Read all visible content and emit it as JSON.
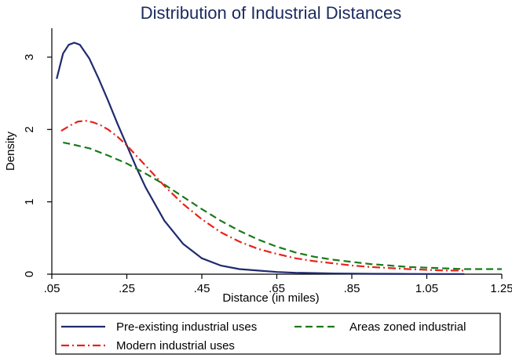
{
  "chart_data": {
    "type": "line",
    "title": "Distribution of Industrial Distances",
    "xlabel": "Distance (in miles)",
    "ylabel": "Density",
    "xlim": [
      0.05,
      1.25
    ],
    "ylim": [
      0,
      3.4
    ],
    "x_ticks": [
      ".05",
      ".25",
      ".45",
      ".65",
      ".85",
      "1.05",
      "1.25"
    ],
    "x_tick_values": [
      0.05,
      0.25,
      0.45,
      0.65,
      0.85,
      1.05,
      1.25
    ],
    "y_ticks": [
      "0",
      "1",
      "2",
      "3"
    ],
    "y_tick_values": [
      0,
      1,
      2,
      3
    ],
    "grid": false,
    "legend_position": "bottom",
    "series": [
      {
        "name": "Pre-existing industrial uses",
        "color": "#1f2a6e",
        "dash": "solid",
        "x": [
          0.063,
          0.08,
          0.095,
          0.11,
          0.125,
          0.15,
          0.175,
          0.2,
          0.225,
          0.25,
          0.275,
          0.3,
          0.35,
          0.4,
          0.45,
          0.5,
          0.55,
          0.6,
          0.65,
          0.7,
          0.75,
          0.8,
          0.9,
          1.0,
          1.1,
          1.15
        ],
        "y": [
          2.7,
          3.05,
          3.17,
          3.2,
          3.17,
          2.98,
          2.7,
          2.4,
          2.08,
          1.78,
          1.48,
          1.2,
          0.74,
          0.42,
          0.22,
          0.12,
          0.07,
          0.05,
          0.03,
          0.02,
          0.015,
          0.01,
          0.005,
          0.003,
          0.002,
          0.002
        ]
      },
      {
        "name": "Areas zoned industrial",
        "color": "#1a7a1a",
        "dash": "dashed",
        "x": [
          0.08,
          0.1,
          0.15,
          0.2,
          0.25,
          0.3,
          0.35,
          0.4,
          0.45,
          0.5,
          0.55,
          0.6,
          0.65,
          0.7,
          0.75,
          0.8,
          0.85,
          0.9,
          0.95,
          1.0,
          1.05,
          1.1,
          1.15,
          1.2,
          1.25
        ],
        "y": [
          1.82,
          1.8,
          1.74,
          1.64,
          1.53,
          1.39,
          1.24,
          1.07,
          0.9,
          0.74,
          0.6,
          0.48,
          0.38,
          0.3,
          0.24,
          0.2,
          0.17,
          0.14,
          0.12,
          0.1,
          0.09,
          0.08,
          0.07,
          0.07,
          0.07
        ]
      },
      {
        "name": "Modern industrial uses",
        "color": "#e8231a",
        "dash": "dashdot",
        "x": [
          0.075,
          0.1,
          0.12,
          0.14,
          0.16,
          0.18,
          0.2,
          0.225,
          0.25,
          0.275,
          0.3,
          0.35,
          0.4,
          0.45,
          0.5,
          0.55,
          0.6,
          0.65,
          0.7,
          0.75,
          0.8,
          0.85,
          0.9,
          1.0,
          1.1,
          1.15
        ],
        "y": [
          1.98,
          2.06,
          2.11,
          2.12,
          2.1,
          2.06,
          2.0,
          1.9,
          1.78,
          1.64,
          1.5,
          1.22,
          0.97,
          0.76,
          0.58,
          0.45,
          0.35,
          0.28,
          0.22,
          0.18,
          0.15,
          0.12,
          0.1,
          0.07,
          0.05,
          0.05
        ]
      }
    ]
  }
}
